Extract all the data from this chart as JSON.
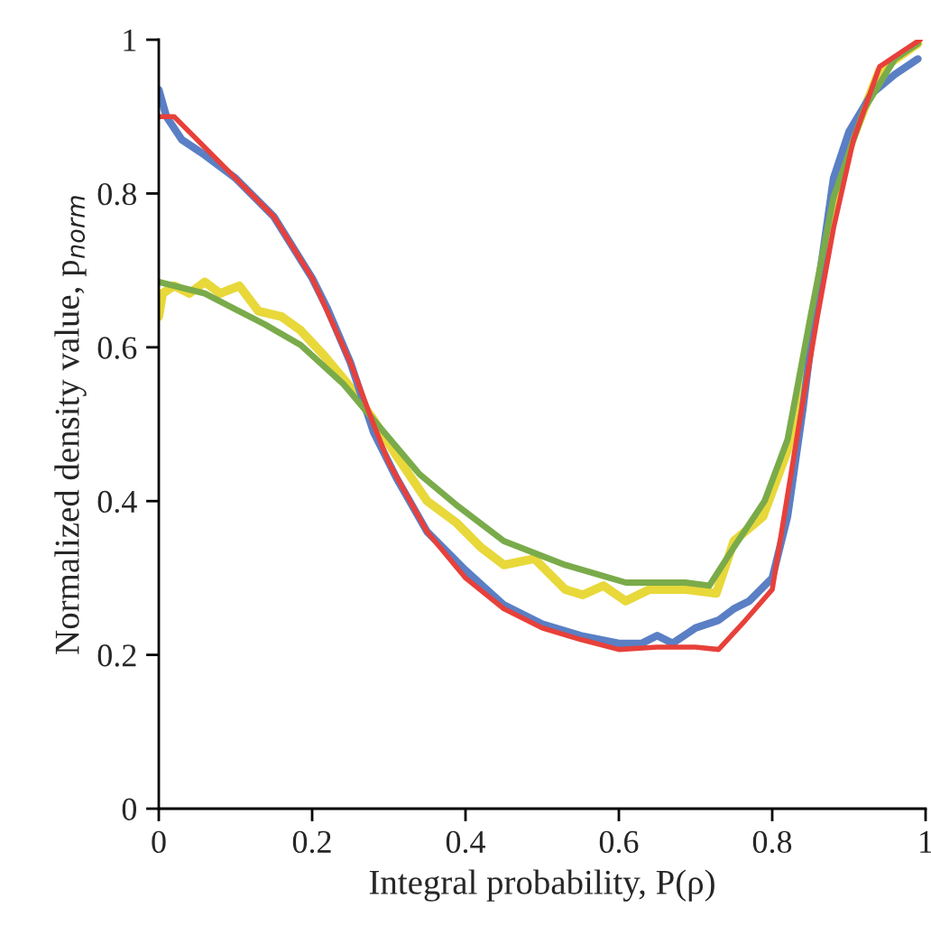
{
  "chart_data": {
    "type": "line",
    "xlabel": "Integral probability, P(ρ)",
    "ylabel": "Normalized density value, p$_{norm}$",
    "xlim": [
      0,
      1
    ],
    "ylim": [
      0,
      1
    ],
    "xticks": [
      0,
      {
        "value": 0.2,
        "label": "0.2"
      },
      {
        "value": 0.4,
        "label": "0.4"
      },
      {
        "value": 0.6,
        "label": "0.6"
      },
      {
        "value": 0.8,
        "label": "0.8"
      },
      1
    ],
    "yticks": [
      0,
      {
        "value": 0.2,
        "label": "0.2"
      },
      {
        "value": 0.4,
        "label": "0.4"
      },
      {
        "value": 0.6,
        "label": "0.6"
      },
      {
        "value": 0.8,
        "label": "0.8"
      },
      1
    ],
    "grid": false,
    "legend": false,
    "marker": "none",
    "line_style": "solid",
    "series": [
      {
        "color": "#e8d83a",
        "x": [
          0,
          0.005,
          0.02,
          0.04,
          0.06,
          0.08,
          0.105,
          0.13,
          0.16,
          0.185,
          0.215,
          0.246,
          0.28,
          0.31,
          0.35,
          0.388,
          0.42,
          0.45,
          0.49,
          0.53,
          0.553,
          0.58,
          0.609,
          0.64,
          0.687,
          0.727,
          0.75,
          0.788,
          0.82,
          0.845,
          0.86,
          0.892,
          0.94,
          0.99
        ],
        "values": [
          0.64,
          0.67,
          0.68,
          0.67,
          0.685,
          0.67,
          0.68,
          0.647,
          0.64,
          0.622,
          0.59,
          0.553,
          0.506,
          0.459,
          0.4,
          0.372,
          0.34,
          0.317,
          0.325,
          0.285,
          0.278,
          0.29,
          0.27,
          0.285,
          0.285,
          0.28,
          0.348,
          0.38,
          0.466,
          0.576,
          0.68,
          0.84,
          0.96,
          0.995
        ]
      },
      {
        "color": "#5a7fc4",
        "x": [
          0,
          0.01,
          0.03,
          0.06,
          0.1,
          0.15,
          0.2,
          0.22,
          0.25,
          0.28,
          0.31,
          0.35,
          0.4,
          0.45,
          0.5,
          0.55,
          0.6,
          0.63,
          0.65,
          0.67,
          0.7,
          0.73,
          0.75,
          0.77,
          0.8,
          0.82,
          0.84,
          0.86,
          0.88,
          0.9,
          0.93,
          0.96,
          0.99
        ],
        "values": [
          0.935,
          0.9,
          0.87,
          0.85,
          0.82,
          0.77,
          0.69,
          0.65,
          0.58,
          0.49,
          0.43,
          0.36,
          0.31,
          0.265,
          0.24,
          0.225,
          0.215,
          0.215,
          0.225,
          0.215,
          0.235,
          0.245,
          0.26,
          0.27,
          0.3,
          0.38,
          0.52,
          0.68,
          0.82,
          0.88,
          0.93,
          0.955,
          0.975
        ]
      },
      {
        "color": "#7aab4a",
        "x": [
          0,
          0.06,
          0.138,
          0.185,
          0.24,
          0.28,
          0.34,
          0.388,
          0.45,
          0.53,
          0.609,
          0.687,
          0.718,
          0.75,
          0.79,
          0.82,
          0.85,
          0.88,
          0.92,
          0.96,
          0.99
        ],
        "values": [
          0.685,
          0.67,
          0.63,
          0.603,
          0.553,
          0.506,
          0.435,
          0.395,
          0.348,
          0.317,
          0.294,
          0.294,
          0.29,
          0.34,
          0.4,
          0.48,
          0.64,
          0.795,
          0.91,
          0.975,
          0.995
        ]
      },
      {
        "color": "#e8403a",
        "x": [
          0,
          0.02,
          0.05,
          0.1,
          0.15,
          0.2,
          0.25,
          0.28,
          0.3,
          0.35,
          0.4,
          0.45,
          0.5,
          0.55,
          0.6,
          0.65,
          0.7,
          0.73,
          0.765,
          0.8,
          0.835,
          0.859,
          0.88,
          0.906,
          0.94,
          0.97,
          0.993
        ],
        "values": [
          0.9,
          0.9,
          0.87,
          0.82,
          0.77,
          0.69,
          0.58,
          0.5,
          0.45,
          0.36,
          0.3,
          0.26,
          0.235,
          0.22,
          0.207,
          0.21,
          0.21,
          0.207,
          0.245,
          0.285,
          0.5,
          0.64,
          0.755,
          0.87,
          0.965,
          0.985,
          1.0
        ]
      }
    ]
  }
}
